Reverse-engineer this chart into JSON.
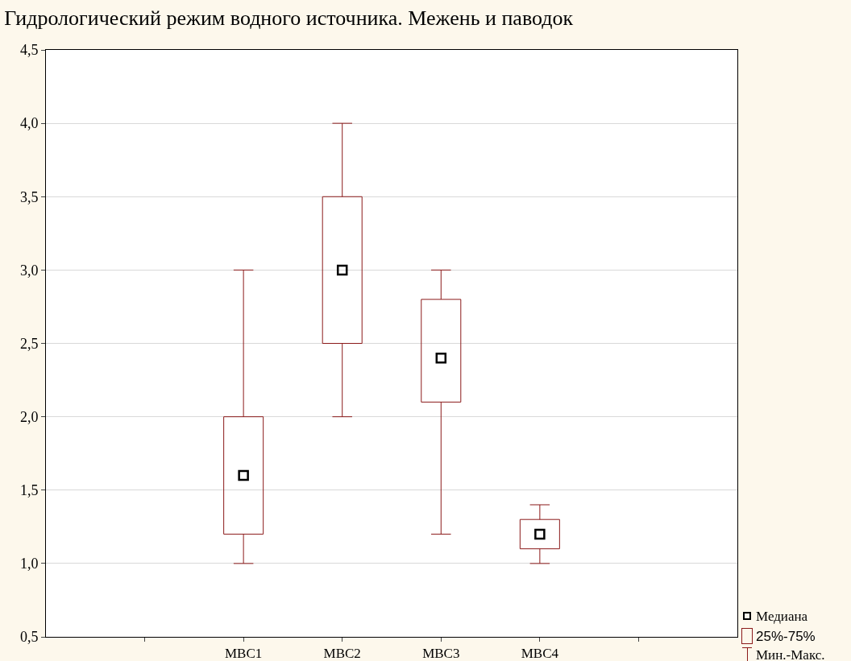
{
  "chart_data": {
    "type": "box",
    "title": "Гидрологический режим водного источника. Межень и паводок",
    "categories": [
      null,
      "МВС1",
      "МВС2",
      "МВС3",
      "МВС4",
      null
    ],
    "boxes": [
      null,
      {
        "low": 1.0,
        "q1": 1.2,
        "median": 1.6,
        "q3": 2.0,
        "high": 3.0
      },
      {
        "low": 2.0,
        "q1": 2.5,
        "median": 3.0,
        "q3": 3.5,
        "high": 4.0
      },
      {
        "low": 1.2,
        "q1": 2.1,
        "median": 2.4,
        "q3": 2.8,
        "high": 3.0
      },
      {
        "low": 1.0,
        "q1": 1.1,
        "median": 1.2,
        "q3": 1.3,
        "high": 1.4
      },
      null
    ],
    "color": "#8b1a1a",
    "ylim": [
      0.5,
      4.5
    ],
    "yticks": [
      {
        "value": 0.5,
        "label": "0,5"
      },
      {
        "value": 1.0,
        "label": "1,0"
      },
      {
        "value": 1.5,
        "label": "1,5"
      },
      {
        "value": 2.0,
        "label": "2,0"
      },
      {
        "value": 2.5,
        "label": "2,5"
      },
      {
        "value": 3.0,
        "label": "3,0"
      },
      {
        "value": 3.5,
        "label": "3,5"
      },
      {
        "value": 4.0,
        "label": "4,0"
      },
      {
        "value": 4.5,
        "label": "4,5"
      }
    ],
    "grid": "y",
    "marker": "square",
    "annotations": [
      "Медиана",
      "25%-75%",
      "Мин.-Макс."
    ]
  }
}
